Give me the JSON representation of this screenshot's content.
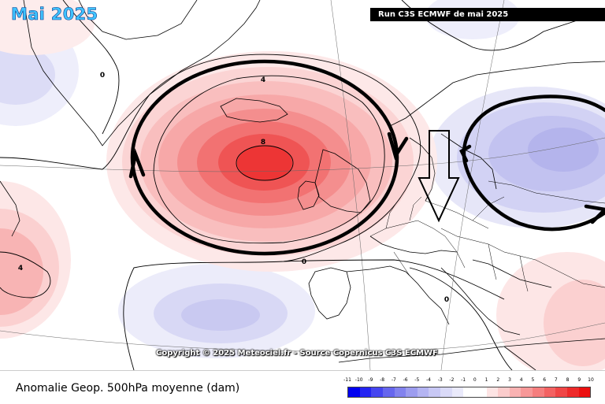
{
  "header": {
    "month_title": "Mai 2025",
    "run_label": "Run C3S ECMWF de mai 2025"
  },
  "map": {
    "copyright": "Copyright © 2025 Meteociel.fr - Source Copernicus C3S ECMWF",
    "contour_labels": {
      "greenland_zero": "0",
      "anomaly_four_north": "4",
      "anomaly_eight_center": "8",
      "anomaly_four_west": "4",
      "zero_atlantic": "0",
      "zero_europe": "0"
    },
    "anomaly_centers": [
      {
        "name": "north-atlantic-high",
        "value_dam": 8,
        "sign": "positive"
      },
      {
        "name": "scandinavia-low",
        "value_dam": -5,
        "sign": "negative"
      },
      {
        "name": "azores-low",
        "value_dam": -3,
        "sign": "negative"
      }
    ]
  },
  "footer": {
    "caption": "Anomalie Geop. 500hPa moyenne (dam)"
  },
  "legend": {
    "ticks": [
      "-11",
      "-10",
      "-9",
      "-8",
      "-7",
      "-6",
      "-5",
      "-4",
      "-3",
      "-2",
      "-1",
      "0",
      "1",
      "2",
      "3",
      "4",
      "5",
      "6",
      "7",
      "8",
      "9",
      "10"
    ],
    "colors": [
      "#0000f0",
      "#2525f2",
      "#4646f0",
      "#6666ee",
      "#8282ee",
      "#9c9cef",
      "#b4b4f2",
      "#c8c8f5",
      "#dadaf8",
      "#eaeafb",
      "#ffffff",
      "#ffffff",
      "#fde4e4",
      "#fbcccc",
      "#f9b2b2",
      "#f79898",
      "#f57e7e",
      "#f36262",
      "#f04646",
      "#ee2a2a",
      "#ec1010"
    ]
  }
}
